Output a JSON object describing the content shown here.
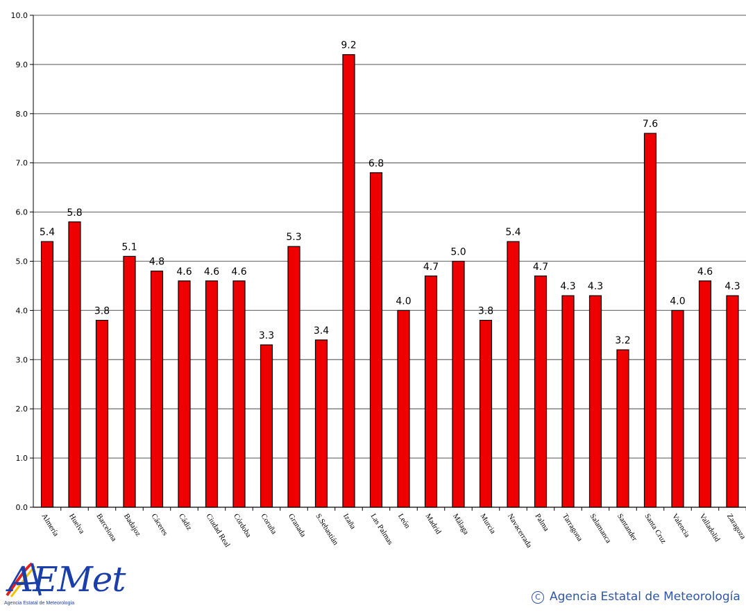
{
  "chart_data": {
    "type": "bar",
    "categories": [
      "Almería",
      "Huelva",
      "Barcelona",
      "Badajoz",
      "Cáceres",
      "Cádiz",
      "Ciudad Real",
      "Córdoba",
      "Coruña",
      "Granada",
      "S.Sebastián",
      "Izaña",
      "Las Palmas",
      "León",
      "Madrid",
      "Málaga",
      "Murcia",
      "Navacerrada",
      "Palma",
      "Tarragona",
      "Salamanca",
      "Santander",
      "Santa Cruz",
      "Valencia",
      "Valladolid",
      "Zaragoza"
    ],
    "values": [
      5.4,
      5.8,
      3.8,
      5.1,
      4.8,
      4.6,
      4.6,
      4.6,
      3.3,
      5.3,
      3.4,
      9.2,
      6.8,
      4.0,
      4.7,
      5.0,
      3.8,
      5.4,
      4.7,
      4.3,
      4.3,
      3.2,
      7.6,
      4.0,
      4.6,
      4.3
    ],
    "data_labels": [
      "5.4",
      "5.8",
      "3.8",
      "5.1",
      "4.8",
      "4.6",
      "4.6",
      "4.6",
      "3.3",
      "5.3",
      "3.4",
      "9.2",
      "6.8",
      "4.0",
      "4.7",
      "5.0",
      "3.8",
      "5.4",
      "4.7",
      "4.3",
      "4.3",
      "3.2",
      "7.6",
      "4.0",
      "4.6",
      "4.3"
    ],
    "yticks": [
      "0.0",
      "1.0",
      "2.0",
      "3.0",
      "4.0",
      "5.0",
      "6.0",
      "7.0",
      "8.0",
      "9.0",
      "10.0"
    ],
    "ylim": [
      0,
      10
    ],
    "title": "",
    "xlabel": "",
    "ylabel": "",
    "grid": true,
    "bar_color": "#ee0000"
  },
  "logo": {
    "word": "AEMet",
    "subtitle": "Agencia Estatal de Meteorología"
  },
  "copyright": {
    "symbol": "C",
    "text": "Agencia Estatal de Meteorología"
  },
  "colors": {
    "logo_blue": "#1b3fa8",
    "logo_red": "#e01f1f",
    "logo_yellow": "#f2c200",
    "copyright_blue": "#2f55a8"
  }
}
